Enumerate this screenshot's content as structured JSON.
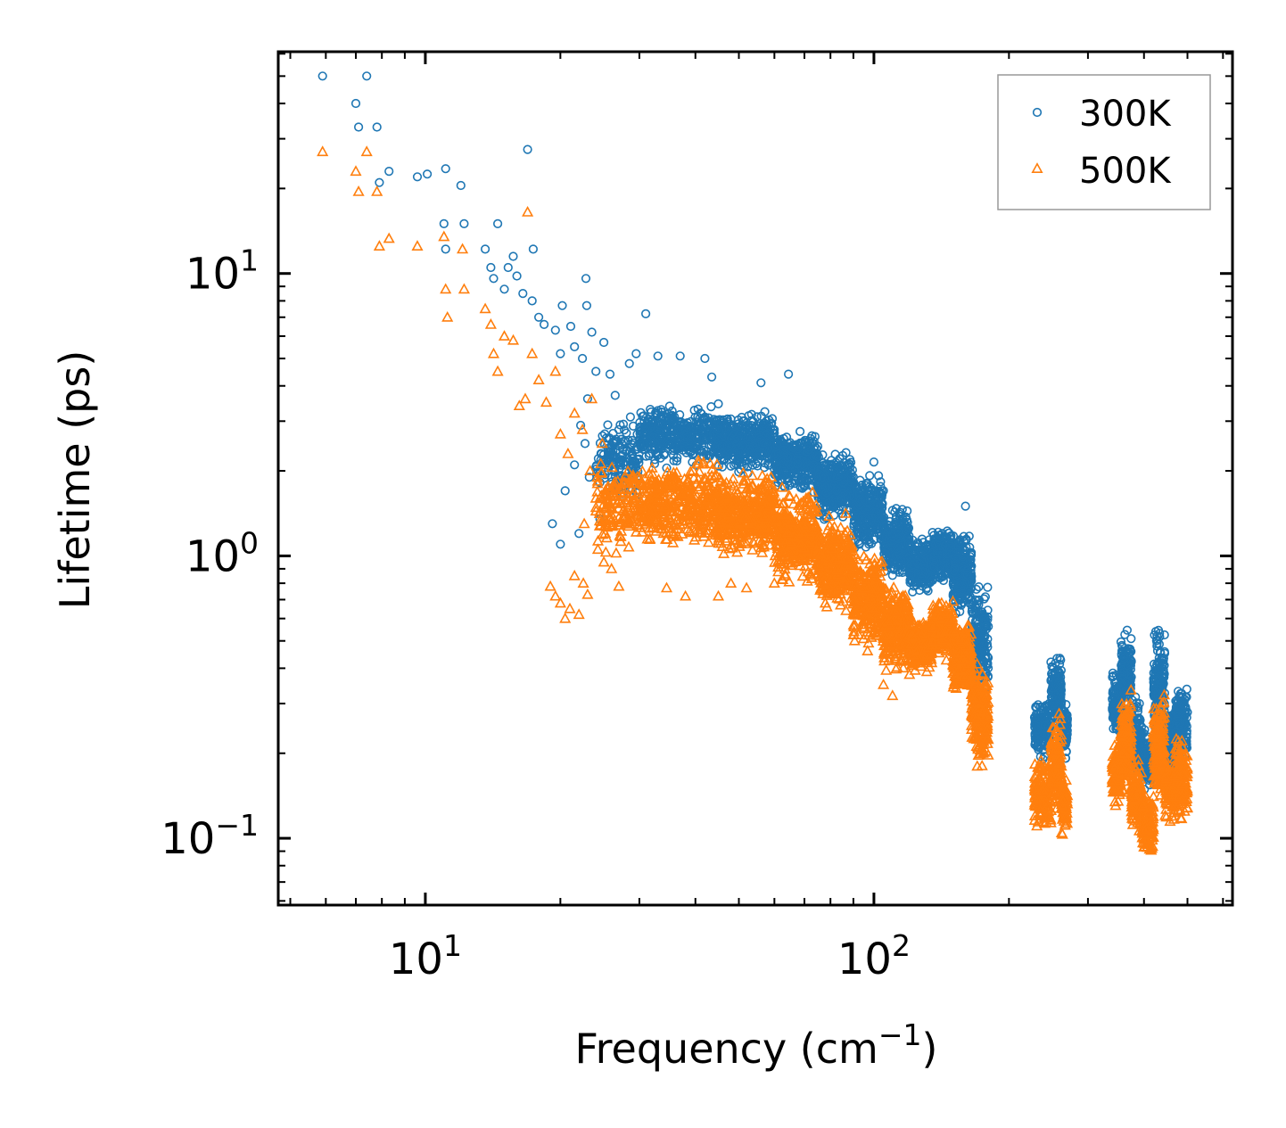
{
  "chart_data": {
    "type": "scatter",
    "title": "",
    "xlabel": "Frequency (cm",
    "xlabel_unit_exponent": "−1",
    "xlabel_close": ")",
    "ylabel": "Lifetime (ps)",
    "xscale": "log",
    "yscale": "log",
    "xlim": [
      4.7,
      630
    ],
    "ylim": [
      0.058,
      61
    ],
    "x_ticks": [
      {
        "value": 10,
        "base": "10",
        "exp": "1"
      },
      {
        "value": 100,
        "base": "10",
        "exp": "2"
      }
    ],
    "y_ticks": [
      {
        "value": 0.1,
        "base": "10",
        "exp": "−1"
      },
      {
        "value": 1,
        "base": "10",
        "exp": "0"
      },
      {
        "value": 10,
        "base": "10",
        "exp": "1"
      }
    ],
    "legend_position": "top-right",
    "series": [
      {
        "name": "300K",
        "color": "#1f77b4",
        "marker": "circle",
        "points": [
          [
            5.9,
            50
          ],
          [
            7.0,
            40
          ],
          [
            7.1,
            33
          ],
          [
            7.4,
            50
          ],
          [
            7.8,
            33
          ],
          [
            7.9,
            21
          ],
          [
            8.3,
            23
          ],
          [
            9.6,
            22
          ],
          [
            10.1,
            22.5
          ],
          [
            11.0,
            15
          ],
          [
            11.1,
            12.2
          ],
          [
            11.1,
            23.5
          ],
          [
            12.0,
            20.5
          ],
          [
            12.2,
            15
          ],
          [
            13.6,
            12.2
          ],
          [
            14.0,
            10.5
          ],
          [
            14.2,
            9.6
          ],
          [
            14.5,
            15
          ],
          [
            15.0,
            8.8
          ],
          [
            15.3,
            10.5
          ],
          [
            15.7,
            11.5
          ],
          [
            16.0,
            9.8
          ],
          [
            16.5,
            8.5
          ],
          [
            16.9,
            27.5
          ],
          [
            17.4,
            12.2
          ],
          [
            17.3,
            8.0
          ],
          [
            17.9,
            7.0
          ],
          [
            18.4,
            6.6
          ],
          [
            19.5,
            6.3
          ],
          [
            20.0,
            5.2
          ],
          [
            20.2,
            7.7
          ],
          [
            21.1,
            6.5
          ],
          [
            21.5,
            5.5
          ],
          [
            22.4,
            5.0
          ],
          [
            22.8,
            9.6
          ],
          [
            22.9,
            7.7
          ],
          [
            23.5,
            6.2
          ],
          [
            24.0,
            4.5
          ],
          [
            25.0,
            5.7
          ],
          [
            25.8,
            4.4
          ],
          [
            26.5,
            3.7
          ],
          [
            28.5,
            4.8
          ],
          [
            29.5,
            5.2
          ],
          [
            31.0,
            7.2
          ],
          [
            33.0,
            5.1
          ],
          [
            37.0,
            5.1
          ],
          [
            42.0,
            5.0
          ],
          [
            43.5,
            4.3
          ],
          [
            56.0,
            4.1
          ],
          [
            64.5,
            4.4
          ],
          [
            100.0,
            2.15
          ],
          [
            160.0,
            1.5
          ],
          [
            105.0,
            1.7
          ],
          [
            110.0,
            1.45
          ],
          [
            19.2,
            1.3
          ],
          [
            20.0,
            1.1
          ],
          [
            20.5,
            1.7
          ],
          [
            21.5,
            2.1
          ],
          [
            22.0,
            1.2
          ],
          [
            22.7,
            2.5
          ],
          [
            23.2,
            1.9
          ],
          [
            24.5,
            1.35
          ],
          [
            25.2,
            2.2
          ],
          [
            26.0,
            1.7
          ],
          [
            27.0,
            2.8
          ],
          [
            23.0,
            3.6
          ],
          [
            22.2,
            2.9
          ]
        ],
        "bands": [
          {
            "x_from": 24,
            "x_to": 30,
            "y_low": 1.4,
            "y_high": 3.3,
            "n": 160
          },
          {
            "x_from": 30,
            "x_to": 45,
            "y_low": 2.0,
            "y_high": 3.6,
            "n": 420
          },
          {
            "x_from": 45,
            "x_to": 60,
            "y_low": 1.9,
            "y_high": 3.4,
            "n": 420
          },
          {
            "x_from": 60,
            "x_to": 75,
            "y_low": 1.6,
            "y_high": 2.9,
            "n": 360
          },
          {
            "x_from": 75,
            "x_to": 90,
            "y_low": 1.3,
            "y_high": 2.4,
            "n": 320
          },
          {
            "x_from": 90,
            "x_to": 105,
            "y_low": 1.0,
            "y_high": 2.0,
            "n": 300
          },
          {
            "x_from": 105,
            "x_to": 120,
            "y_low": 0.78,
            "y_high": 1.55,
            "n": 280
          },
          {
            "x_from": 120,
            "x_to": 135,
            "y_low": 0.72,
            "y_high": 1.2,
            "n": 260
          },
          {
            "x_from": 135,
            "x_to": 150,
            "y_low": 0.78,
            "y_high": 1.3,
            "n": 260
          },
          {
            "x_from": 150,
            "x_to": 165,
            "y_low": 0.6,
            "y_high": 1.25,
            "n": 260
          },
          {
            "x_from": 165,
            "x_to": 180,
            "y_low": 0.3,
            "y_high": 0.85,
            "n": 220
          },
          {
            "x_from": 228,
            "x_to": 248,
            "y_low": 0.18,
            "y_high": 0.33,
            "n": 140
          },
          {
            "x_from": 248,
            "x_to": 262,
            "y_low": 0.22,
            "y_high": 0.47,
            "n": 140
          },
          {
            "x_from": 262,
            "x_to": 270,
            "y_low": 0.18,
            "y_high": 0.32,
            "n": 80
          },
          {
            "x_from": 340,
            "x_to": 355,
            "y_low": 0.22,
            "y_high": 0.4,
            "n": 120
          },
          {
            "x_from": 355,
            "x_to": 375,
            "y_low": 0.25,
            "y_high": 0.6,
            "n": 160
          },
          {
            "x_from": 375,
            "x_to": 395,
            "y_low": 0.16,
            "y_high": 0.33,
            "n": 140
          },
          {
            "x_from": 395,
            "x_to": 420,
            "y_low": 0.14,
            "y_high": 0.25,
            "n": 120
          },
          {
            "x_from": 420,
            "x_to": 445,
            "y_low": 0.2,
            "y_high": 0.6,
            "n": 160
          },
          {
            "x_from": 445,
            "x_to": 470,
            "y_low": 0.15,
            "y_high": 0.32,
            "n": 120
          },
          {
            "x_from": 470,
            "x_to": 500,
            "y_low": 0.17,
            "y_high": 0.38,
            "n": 140
          }
        ]
      },
      {
        "name": "500K",
        "color": "#ff7f0e",
        "marker": "triangle",
        "points": [
          [
            5.9,
            27
          ],
          [
            7.0,
            23
          ],
          [
            7.1,
            19.5
          ],
          [
            7.4,
            27
          ],
          [
            7.8,
            19.5
          ],
          [
            7.9,
            12.5
          ],
          [
            8.3,
            13.3
          ],
          [
            9.6,
            12.5
          ],
          [
            11.0,
            13.5
          ],
          [
            11.1,
            8.8
          ],
          [
            11.2,
            7.0
          ],
          [
            12.2,
            8.8
          ],
          [
            12.1,
            12.2
          ],
          [
            13.6,
            7.5
          ],
          [
            14.0,
            6.6
          ],
          [
            14.2,
            5.2
          ],
          [
            14.5,
            4.5
          ],
          [
            15.0,
            6.0
          ],
          [
            15.7,
            5.8
          ],
          [
            16.2,
            3.4
          ],
          [
            16.9,
            16.5
          ],
          [
            16.7,
            3.6
          ],
          [
            17.3,
            5.2
          ],
          [
            17.9,
            4.2
          ],
          [
            18.6,
            3.5
          ],
          [
            19.5,
            4.5
          ],
          [
            20.0,
            2.7
          ],
          [
            20.8,
            2.3
          ],
          [
            21.5,
            3.2
          ],
          [
            22.4,
            2.8
          ],
          [
            23.5,
            3.6
          ],
          [
            19.0,
            0.78
          ],
          [
            19.5,
            0.72
          ],
          [
            20.0,
            0.68
          ],
          [
            20.5,
            0.6
          ],
          [
            21.0,
            0.65
          ],
          [
            21.5,
            0.85
          ],
          [
            22.0,
            0.62
          ],
          [
            22.5,
            0.8
          ],
          [
            23.0,
            0.73
          ],
          [
            25.0,
            0.95
          ],
          [
            26.0,
            0.9
          ],
          [
            27.0,
            0.78
          ],
          [
            34.5,
            0.77
          ],
          [
            38.0,
            0.72
          ],
          [
            45.0,
            0.72
          ],
          [
            48.0,
            0.8
          ],
          [
            52.0,
            0.77
          ],
          [
            60.0,
            0.8
          ],
          [
            105.0,
            0.35
          ],
          [
            110.0,
            0.32
          ],
          [
            120.0,
            0.38
          ],
          [
            170.0,
            0.18
          ],
          [
            175.0,
            0.2
          ],
          [
            24.0,
            1.6
          ],
          [
            24.8,
            2.5
          ],
          [
            23.3,
            2.0
          ],
          [
            22.6,
            1.3
          ]
        ],
        "bands": [
          {
            "x_from": 24,
            "x_to": 30,
            "y_low": 0.95,
            "y_high": 2.4,
            "n": 150
          },
          {
            "x_from": 30,
            "x_to": 45,
            "y_low": 1.0,
            "y_high": 2.3,
            "n": 420
          },
          {
            "x_from": 45,
            "x_to": 60,
            "y_low": 0.95,
            "y_high": 2.1,
            "n": 420
          },
          {
            "x_from": 60,
            "x_to": 75,
            "y_low": 0.75,
            "y_high": 1.8,
            "n": 360
          },
          {
            "x_from": 75,
            "x_to": 90,
            "y_low": 0.6,
            "y_high": 1.45,
            "n": 320
          },
          {
            "x_from": 90,
            "x_to": 105,
            "y_low": 0.45,
            "y_high": 1.1,
            "n": 300
          },
          {
            "x_from": 105,
            "x_to": 120,
            "y_low": 0.37,
            "y_high": 0.85,
            "n": 280
          },
          {
            "x_from": 120,
            "x_to": 135,
            "y_low": 0.38,
            "y_high": 0.62,
            "n": 260
          },
          {
            "x_from": 135,
            "x_to": 150,
            "y_low": 0.42,
            "y_high": 0.72,
            "n": 260
          },
          {
            "x_from": 150,
            "x_to": 165,
            "y_low": 0.3,
            "y_high": 0.62,
            "n": 260
          },
          {
            "x_from": 165,
            "x_to": 180,
            "y_low": 0.17,
            "y_high": 0.45,
            "n": 220
          },
          {
            "x_from": 228,
            "x_to": 248,
            "y_low": 0.1,
            "y_high": 0.2,
            "n": 140
          },
          {
            "x_from": 248,
            "x_to": 262,
            "y_low": 0.12,
            "y_high": 0.28,
            "n": 140
          },
          {
            "x_from": 262,
            "x_to": 270,
            "y_low": 0.1,
            "y_high": 0.17,
            "n": 80
          },
          {
            "x_from": 340,
            "x_to": 355,
            "y_low": 0.12,
            "y_high": 0.24,
            "n": 120
          },
          {
            "x_from": 355,
            "x_to": 375,
            "y_low": 0.13,
            "y_high": 0.36,
            "n": 160
          },
          {
            "x_from": 375,
            "x_to": 395,
            "y_low": 0.1,
            "y_high": 0.2,
            "n": 140
          },
          {
            "x_from": 395,
            "x_to": 420,
            "y_low": 0.082,
            "y_high": 0.15,
            "n": 120
          },
          {
            "x_from": 420,
            "x_to": 445,
            "y_low": 0.12,
            "y_high": 0.36,
            "n": 160
          },
          {
            "x_from": 445,
            "x_to": 470,
            "y_low": 0.11,
            "y_high": 0.2,
            "n": 120
          },
          {
            "x_from": 470,
            "x_to": 500,
            "y_low": 0.11,
            "y_high": 0.24,
            "n": 140
          }
        ]
      }
    ]
  }
}
